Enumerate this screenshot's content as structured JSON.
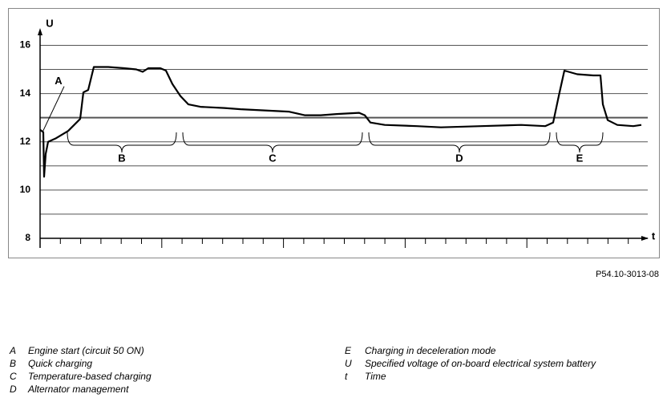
{
  "chart_data": {
    "type": "line",
    "y_label": "U",
    "x_label": "t",
    "code": "P54.10-3013-08",
    "ylim": [
      8,
      16.7
    ],
    "yticks": [
      8,
      10,
      12,
      14,
      16
    ],
    "minor_yticks": [
      9,
      11,
      13,
      15
    ],
    "reference_line": 13,
    "xlim": [
      0,
      758
    ],
    "grid": true,
    "color": "#000000",
    "x": [
      0,
      4,
      5,
      7,
      10,
      20,
      35,
      50,
      54,
      60,
      67,
      85,
      105,
      120,
      128,
      135,
      150,
      157,
      165,
      175,
      185,
      200,
      230,
      250,
      280,
      310,
      330,
      350,
      370,
      398,
      405,
      412,
      430,
      470,
      500,
      550,
      600,
      630,
      640,
      647,
      654,
      670,
      690,
      699,
      702,
      708,
      720,
      740,
      750
    ],
    "values": [
      12.5,
      12.4,
      10.55,
      11.5,
      12.0,
      12.15,
      12.45,
      12.95,
      14.05,
      14.15,
      15.1,
      15.1,
      15.05,
      15.0,
      14.9,
      15.05,
      15.05,
      14.95,
      14.4,
      13.9,
      13.55,
      13.45,
      13.4,
      13.35,
      13.3,
      13.25,
      13.1,
      13.1,
      13.15,
      13.2,
      13.1,
      12.8,
      12.7,
      12.65,
      12.6,
      12.65,
      12.7,
      12.65,
      12.8,
      13.9,
      14.95,
      14.8,
      14.75,
      14.75,
      13.55,
      12.9,
      12.7,
      12.65,
      12.7
    ],
    "point_annotation": {
      "label": "A",
      "x": 3,
      "y": 12.4
    },
    "regions": [
      {
        "label": "B",
        "x": [
          34,
          170
        ]
      },
      {
        "label": "C",
        "x": [
          178,
          402
        ]
      },
      {
        "label": "D",
        "x": [
          410,
          636
        ]
      },
      {
        "label": "E",
        "x": [
          644,
          702
        ]
      }
    ],
    "legend": [
      {
        "key": "A",
        "text": "Engine start (circuit 50 ON)"
      },
      {
        "key": "B",
        "text": "Quick charging"
      },
      {
        "key": "C",
        "text": "Temperature-based charging"
      },
      {
        "key": "D",
        "text": "Alternator management"
      },
      {
        "key": "E",
        "text": "Charging in deceleration mode"
      },
      {
        "key": "U",
        "text": "Specified voltage of on-board electrical system battery"
      },
      {
        "key": "t",
        "text": "Time"
      }
    ]
  }
}
